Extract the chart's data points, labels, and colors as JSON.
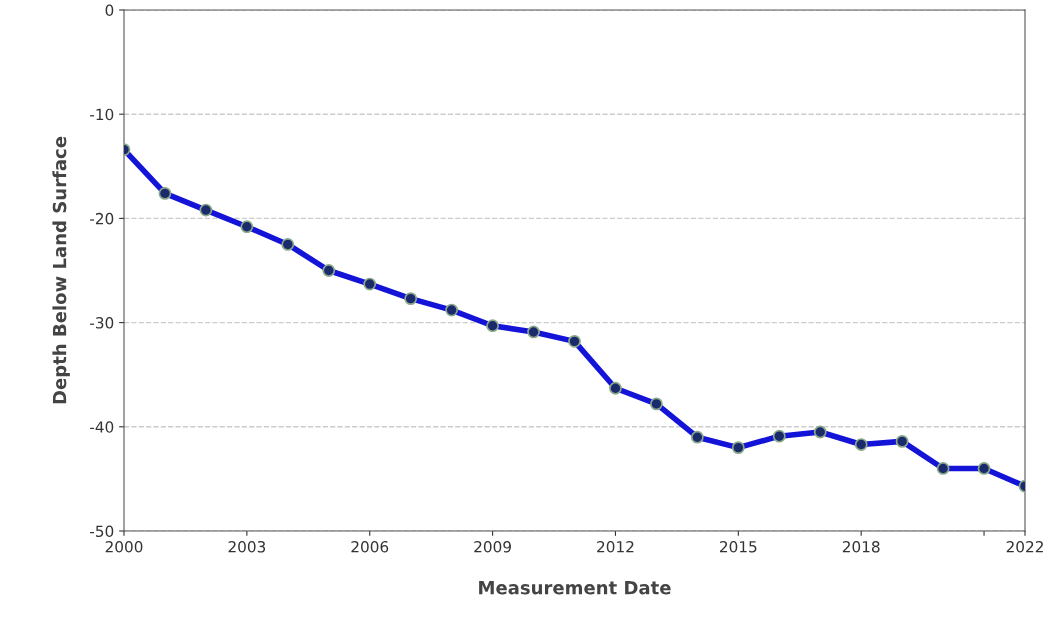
{
  "chart_data": {
    "type": "line",
    "xlabel": "Measurement Date",
    "ylabel": "Depth Below Land Surface",
    "x": [
      2000,
      2001,
      2002,
      2003,
      2004,
      2005,
      2006,
      2007,
      2008,
      2009,
      2010,
      2011,
      2012,
      2013,
      2014,
      2015,
      2016,
      2017,
      2018,
      2019,
      2020,
      2021,
      2022
    ],
    "series": [
      {
        "color": "#1414d8",
        "values": [
          -13.4,
          -17.6,
          -19.2,
          -20.8,
          -22.5,
          -25.0,
          -26.3,
          -27.7,
          -28.8,
          -30.3,
          -30.9,
          -31.8,
          -36.3,
          -37.8,
          -41.0,
          -42.0,
          -40.9,
          -40.5,
          -41.7,
          -41.4,
          -44.0,
          -44.0,
          -45.7
        ]
      }
    ],
    "xlim": [
      2000,
      2022
    ],
    "xticks": [
      2000,
      2003,
      2006,
      2009,
      2012,
      2015,
      2018,
      {
        "value": 2021,
        "label": null
      },
      2022
    ],
    "ylim": [
      -50,
      0
    ],
    "yticks": [
      -50,
      -40,
      -30,
      -20,
      -10,
      0
    ],
    "grid": "y",
    "marker": "circle",
    "line_style": "solid"
  }
}
